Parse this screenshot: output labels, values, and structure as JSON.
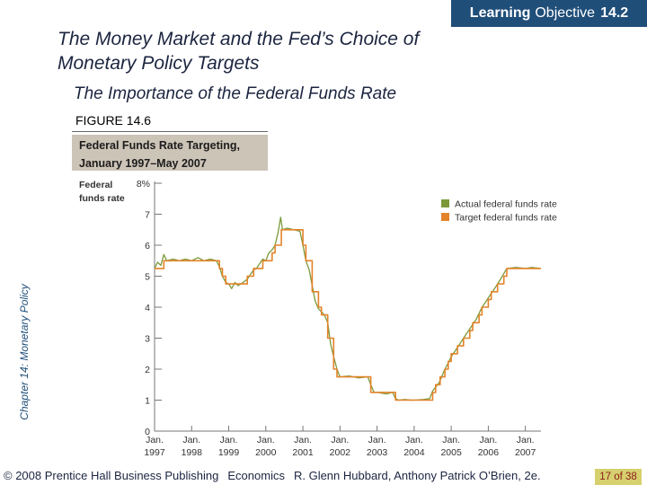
{
  "header": {
    "lo_bold": "Learning",
    "lo_text": "Objective",
    "lo_number": "14.2",
    "title": "The Money Market and the Fed’s Choice of Monetary Policy Targets",
    "subtitle": "The Importance of the Federal Funds Rate"
  },
  "figure": {
    "label": "FIGURE 14.6",
    "caption_line1": "Federal Funds Rate Targeting,",
    "caption_line2": "January 1997–May 2007"
  },
  "side_label": "Chapter 14: Monetary Policy",
  "footer": {
    "copyright": "© 2008 Prentice Hall Business Publishing",
    "book": "Economics",
    "authors": "R. Glenn Hubbard, Anthony Patrick O’Brien, 2e.",
    "page_current": "17",
    "page_of": "of",
    "page_total": "38"
  },
  "colors": {
    "actual": "#7a9a3a",
    "target": "#e4832a",
    "banner": "#1f4e79",
    "caption_box": "#ccc4b7",
    "page_box": "#d6d06e"
  },
  "chart_data": {
    "type": "line",
    "ylabel_line1": "Federal",
    "ylabel_line2": "funds rate",
    "y_ticks": [
      "0",
      "1",
      "2",
      "3",
      "4",
      "5",
      "6",
      "7",
      "8%"
    ],
    "ylim": [
      0,
      8
    ],
    "xlim": [
      1997.0,
      2007.42
    ],
    "x_ticks": [
      {
        "month": "Jan.",
        "year": "1997",
        "x": 1997
      },
      {
        "month": "Jan.",
        "year": "1998",
        "x": 1998
      },
      {
        "month": "Jan.",
        "year": "1999",
        "x": 1999
      },
      {
        "month": "Jan.",
        "year": "2000",
        "x": 2000
      },
      {
        "month": "Jan.",
        "year": "2001",
        "x": 2001
      },
      {
        "month": "Jan.",
        "year": "2002",
        "x": 2002
      },
      {
        "month": "Jan.",
        "year": "2003",
        "x": 2003
      },
      {
        "month": "Jan.",
        "year": "2004",
        "x": 2004
      },
      {
        "month": "Jan.",
        "year": "2005",
        "x": 2005
      },
      {
        "month": "Jan.",
        "year": "2006",
        "x": 2006
      },
      {
        "month": "Jan.",
        "year": "2007",
        "x": 2007
      }
    ],
    "legend_position": "top-right",
    "series": [
      {
        "name": "Actual federal funds rate",
        "color": "#7a9a3a",
        "points": [
          [
            1997.0,
            5.25
          ],
          [
            1997.08,
            5.45
          ],
          [
            1997.17,
            5.35
          ],
          [
            1997.25,
            5.7
          ],
          [
            1997.33,
            5.5
          ],
          [
            1997.5,
            5.55
          ],
          [
            1997.67,
            5.5
          ],
          [
            1997.83,
            5.55
          ],
          [
            1998.0,
            5.5
          ],
          [
            1998.17,
            5.6
          ],
          [
            1998.33,
            5.5
          ],
          [
            1998.5,
            5.55
          ],
          [
            1998.67,
            5.5
          ],
          [
            1998.75,
            5.3
          ],
          [
            1998.83,
            5.0
          ],
          [
            1998.92,
            4.8
          ],
          [
            1999.0,
            4.75
          ],
          [
            1999.08,
            4.6
          ],
          [
            1999.17,
            4.8
          ],
          [
            1999.25,
            4.7
          ],
          [
            1999.33,
            4.75
          ],
          [
            1999.5,
            4.9
          ],
          [
            1999.58,
            5.05
          ],
          [
            1999.67,
            5.2
          ],
          [
            1999.75,
            5.25
          ],
          [
            1999.83,
            5.4
          ],
          [
            1999.92,
            5.55
          ],
          [
            2000.0,
            5.5
          ],
          [
            2000.08,
            5.75
          ],
          [
            2000.17,
            5.85
          ],
          [
            2000.25,
            6.0
          ],
          [
            2000.33,
            6.4
          ],
          [
            2000.4,
            6.9
          ],
          [
            2000.45,
            6.5
          ],
          [
            2000.58,
            6.55
          ],
          [
            2000.75,
            6.5
          ],
          [
            2000.92,
            6.45
          ],
          [
            2001.0,
            6.0
          ],
          [
            2001.08,
            5.5
          ],
          [
            2001.17,
            5.2
          ],
          [
            2001.25,
            4.7
          ],
          [
            2001.33,
            4.2
          ],
          [
            2001.42,
            3.95
          ],
          [
            2001.58,
            3.75
          ],
          [
            2001.67,
            3.5
          ],
          [
            2001.75,
            2.8
          ],
          [
            2001.83,
            2.4
          ],
          [
            2001.92,
            2.0
          ],
          [
            2002.0,
            1.75
          ],
          [
            2002.25,
            1.78
          ],
          [
            2002.5,
            1.72
          ],
          [
            2002.75,
            1.75
          ],
          [
            2002.83,
            1.5
          ],
          [
            2002.92,
            1.25
          ],
          [
            2003.0,
            1.25
          ],
          [
            2003.25,
            1.2
          ],
          [
            2003.42,
            1.25
          ],
          [
            2003.5,
            1.05
          ],
          [
            2003.58,
            1.0
          ],
          [
            2003.75,
            1.02
          ],
          [
            2003.92,
            1.0
          ],
          [
            2004.0,
            1.0
          ],
          [
            2004.25,
            1.02
          ],
          [
            2004.42,
            1.05
          ],
          [
            2004.5,
            1.3
          ],
          [
            2004.67,
            1.55
          ],
          [
            2004.83,
            2.0
          ],
          [
            2004.92,
            2.2
          ],
          [
            2005.0,
            2.4
          ],
          [
            2005.17,
            2.7
          ],
          [
            2005.33,
            3.0
          ],
          [
            2005.5,
            3.3
          ],
          [
            2005.67,
            3.6
          ],
          [
            2005.83,
            4.0
          ],
          [
            2005.92,
            4.15
          ],
          [
            2006.0,
            4.3
          ],
          [
            2006.17,
            4.6
          ],
          [
            2006.33,
            4.9
          ],
          [
            2006.5,
            5.25
          ],
          [
            2006.75,
            5.28
          ],
          [
            2007.0,
            5.25
          ],
          [
            2007.17,
            5.28
          ],
          [
            2007.42,
            5.25
          ]
        ]
      },
      {
        "name": "Target federal funds rate",
        "color": "#e4832a",
        "points": [
          [
            1997.0,
            5.25
          ],
          [
            1997.25,
            5.25
          ],
          [
            1997.25,
            5.5
          ],
          [
            1998.75,
            5.5
          ],
          [
            1998.75,
            5.25
          ],
          [
            1998.83,
            5.25
          ],
          [
            1998.83,
            5.0
          ],
          [
            1998.92,
            5.0
          ],
          [
            1998.92,
            4.75
          ],
          [
            1999.5,
            4.75
          ],
          [
            1999.5,
            5.0
          ],
          [
            1999.67,
            5.0
          ],
          [
            1999.67,
            5.25
          ],
          [
            1999.92,
            5.25
          ],
          [
            1999.92,
            5.5
          ],
          [
            2000.17,
            5.5
          ],
          [
            2000.17,
            5.75
          ],
          [
            2000.25,
            5.75
          ],
          [
            2000.25,
            6.0
          ],
          [
            2000.42,
            6.0
          ],
          [
            2000.42,
            6.5
          ],
          [
            2001.0,
            6.5
          ],
          [
            2001.0,
            6.0
          ],
          [
            2001.08,
            6.0
          ],
          [
            2001.08,
            5.5
          ],
          [
            2001.25,
            5.5
          ],
          [
            2001.25,
            4.5
          ],
          [
            2001.42,
            4.5
          ],
          [
            2001.42,
            4.0
          ],
          [
            2001.5,
            4.0
          ],
          [
            2001.5,
            3.75
          ],
          [
            2001.67,
            3.75
          ],
          [
            2001.67,
            3.0
          ],
          [
            2001.83,
            3.0
          ],
          [
            2001.83,
            2.0
          ],
          [
            2001.92,
            2.0
          ],
          [
            2001.92,
            1.75
          ],
          [
            2002.83,
            1.75
          ],
          [
            2002.83,
            1.25
          ],
          [
            2003.5,
            1.25
          ],
          [
            2003.5,
            1.0
          ],
          [
            2004.5,
            1.0
          ],
          [
            2004.5,
            1.25
          ],
          [
            2004.58,
            1.25
          ],
          [
            2004.58,
            1.5
          ],
          [
            2004.7,
            1.5
          ],
          [
            2004.7,
            1.75
          ],
          [
            2004.83,
            1.75
          ],
          [
            2004.83,
            2.0
          ],
          [
            2004.92,
            2.0
          ],
          [
            2004.92,
            2.25
          ],
          [
            2005.0,
            2.25
          ],
          [
            2005.0,
            2.5
          ],
          [
            2005.17,
            2.5
          ],
          [
            2005.17,
            2.75
          ],
          [
            2005.33,
            2.75
          ],
          [
            2005.33,
            3.0
          ],
          [
            2005.5,
            3.0
          ],
          [
            2005.5,
            3.25
          ],
          [
            2005.58,
            3.25
          ],
          [
            2005.58,
            3.5
          ],
          [
            2005.75,
            3.5
          ],
          [
            2005.75,
            3.75
          ],
          [
            2005.83,
            3.75
          ],
          [
            2005.83,
            4.0
          ],
          [
            2006.0,
            4.0
          ],
          [
            2006.0,
            4.25
          ],
          [
            2006.08,
            4.25
          ],
          [
            2006.08,
            4.5
          ],
          [
            2006.25,
            4.5
          ],
          [
            2006.25,
            4.75
          ],
          [
            2006.42,
            4.75
          ],
          [
            2006.42,
            5.0
          ],
          [
            2006.5,
            5.0
          ],
          [
            2006.5,
            5.25
          ],
          [
            2007.42,
            5.25
          ]
        ]
      }
    ]
  }
}
